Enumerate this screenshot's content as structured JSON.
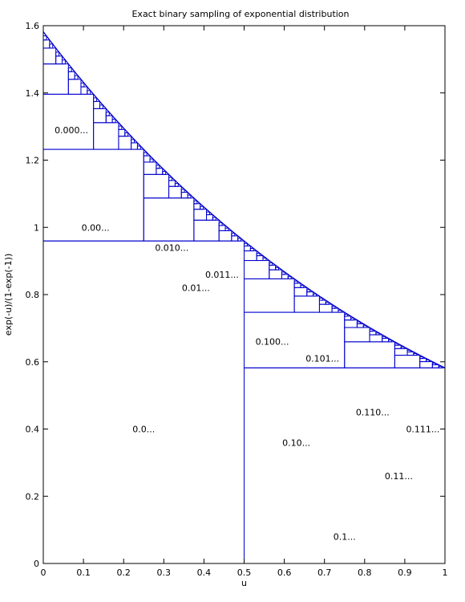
{
  "chart_data": {
    "type": "line",
    "title": "Exact binary sampling of exponential distribution",
    "xlabel": "u",
    "ylabel": "exp(-u)/(1-exp(-1))",
    "xlim": [
      0,
      1
    ],
    "ylim": [
      0,
      1.6
    ],
    "xticks": [
      "0",
      "0.1",
      "0.2",
      "0.3",
      "0.4",
      "0.5",
      "0.6",
      "0.7",
      "0.8",
      "0.9",
      "1"
    ],
    "yticks": [
      "0",
      "0.2",
      "0.4",
      "0.6",
      "0.8",
      "1",
      "1.2",
      "1.4",
      "1.6"
    ],
    "grid": false,
    "curve": {
      "function": "exp(-u)/(1-exp(-1))",
      "x_range": [
        0,
        1
      ]
    },
    "region_labels": [
      {
        "text": "0.0...",
        "x": 0.25,
        "y": 0.4
      },
      {
        "text": "0.00...",
        "x": 0.13,
        "y": 1.0
      },
      {
        "text": "0.000...",
        "x": 0.07,
        "y": 1.29
      },
      {
        "text": "0.01...",
        "x": 0.38,
        "y": 0.82
      },
      {
        "text": "0.010...",
        "x": 0.32,
        "y": 0.94
      },
      {
        "text": "0.011...",
        "x": 0.445,
        "y": 0.86
      },
      {
        "text": "0.1...",
        "x": 0.75,
        "y": 0.08
      },
      {
        "text": "0.10...",
        "x": 0.63,
        "y": 0.36
      },
      {
        "text": "0.100...",
        "x": 0.57,
        "y": 0.66
      },
      {
        "text": "0.101...",
        "x": 0.695,
        "y": 0.61
      },
      {
        "text": "0.11...",
        "x": 0.885,
        "y": 0.26
      },
      {
        "text": "0.110...",
        "x": 0.82,
        "y": 0.45
      },
      {
        "text": "0.111...",
        "x": 0.945,
        "y": 0.4
      }
    ]
  }
}
